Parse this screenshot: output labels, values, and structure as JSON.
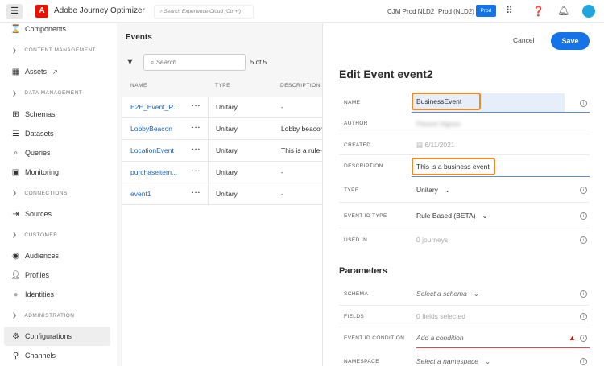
{
  "header": {
    "app_title": "Adobe Journey Optimizer",
    "search_placeholder": "Search Experience Cloud (Ctrl+/)",
    "org": "CJM Prod NLD2",
    "sandbox": "Prod (NLD2)",
    "badge": "Prod",
    "icons": [
      "menu-icon",
      "adobe-logo",
      "apps-grid-icon",
      "help-icon",
      "bell-icon",
      "avatar"
    ]
  },
  "sidebar": {
    "top": {
      "label": "Components",
      "icon": "components-icon"
    },
    "sections": [
      {
        "title": "CONTENT MANAGEMENT",
        "items": [
          {
            "label": "Assets",
            "icon": "assets-icon",
            "external": true
          }
        ]
      },
      {
        "title": "DATA MANAGEMENT",
        "items": [
          {
            "label": "Schemas",
            "icon": "schema-icon"
          },
          {
            "label": "Datasets",
            "icon": "dataset-icon"
          },
          {
            "label": "Queries",
            "icon": "query-icon"
          },
          {
            "label": "Monitoring",
            "icon": "monitor-icon"
          }
        ]
      },
      {
        "title": "CONNECTIONS",
        "items": [
          {
            "label": "Sources",
            "icon": "sources-icon"
          }
        ]
      },
      {
        "title": "CUSTOMER",
        "items": [
          {
            "label": "Audiences",
            "icon": "audiences-icon"
          },
          {
            "label": "Profiles",
            "icon": "profile-icon"
          },
          {
            "label": "Identities",
            "icon": "identities-icon"
          }
        ]
      },
      {
        "title": "ADMINISTRATION",
        "items": [
          {
            "label": "Configurations",
            "icon": "gear-icon",
            "active": true
          },
          {
            "label": "Channels",
            "icon": "channels-icon"
          }
        ]
      }
    ]
  },
  "events": {
    "title": "Events",
    "search_placeholder": "Search",
    "count": "5 of 5",
    "columns": [
      "NAME",
      "TYPE",
      "DESCRIPTION"
    ],
    "rows": [
      {
        "name": "E2E_Event_R...",
        "type": "Unitary",
        "description": "-"
      },
      {
        "name": "LobbyBeacon",
        "type": "Unitary",
        "description": "Lobby beacon"
      },
      {
        "name": "LocationEvent",
        "type": "Unitary",
        "description": "This is a rule-b"
      },
      {
        "name": "purchaseitem...",
        "type": "Unitary",
        "description": "-"
      },
      {
        "name": "event1",
        "type": "Unitary",
        "description": "-"
      }
    ]
  },
  "editor": {
    "cancel": "Cancel",
    "save": "Save",
    "title": "Edit Event event2",
    "fields": {
      "name": {
        "label": "NAME",
        "value": "BusinessEvent"
      },
      "author": {
        "label": "AUTHOR",
        "value": "Florent Vignon"
      },
      "created": {
        "label": "CREATED",
        "value": "6/11/2021"
      },
      "description": {
        "label": "DESCRIPTION",
        "value": "This is a business event"
      },
      "type": {
        "label": "TYPE",
        "value": "Unitary"
      },
      "event_id_type": {
        "label": "EVENT ID TYPE",
        "value": "Rule Based (BETA)"
      },
      "used_in": {
        "label": "USED IN",
        "value": "0 journeys"
      }
    },
    "parameters_title": "Parameters",
    "parameters": {
      "schema": {
        "label": "SCHEMA",
        "placeholder": "Select a schema"
      },
      "fields": {
        "label": "FIELDS",
        "value": "0 fields selected"
      },
      "condition": {
        "label": "EVENT ID CONDITION",
        "placeholder": "Add a condition",
        "status": "error"
      },
      "namespace": {
        "label": "NAMESPACE",
        "placeholder": "Select a namespace"
      }
    },
    "colors": {
      "accent": "#1473e6",
      "highlight": "#f08a24",
      "error": "#d31510"
    }
  }
}
